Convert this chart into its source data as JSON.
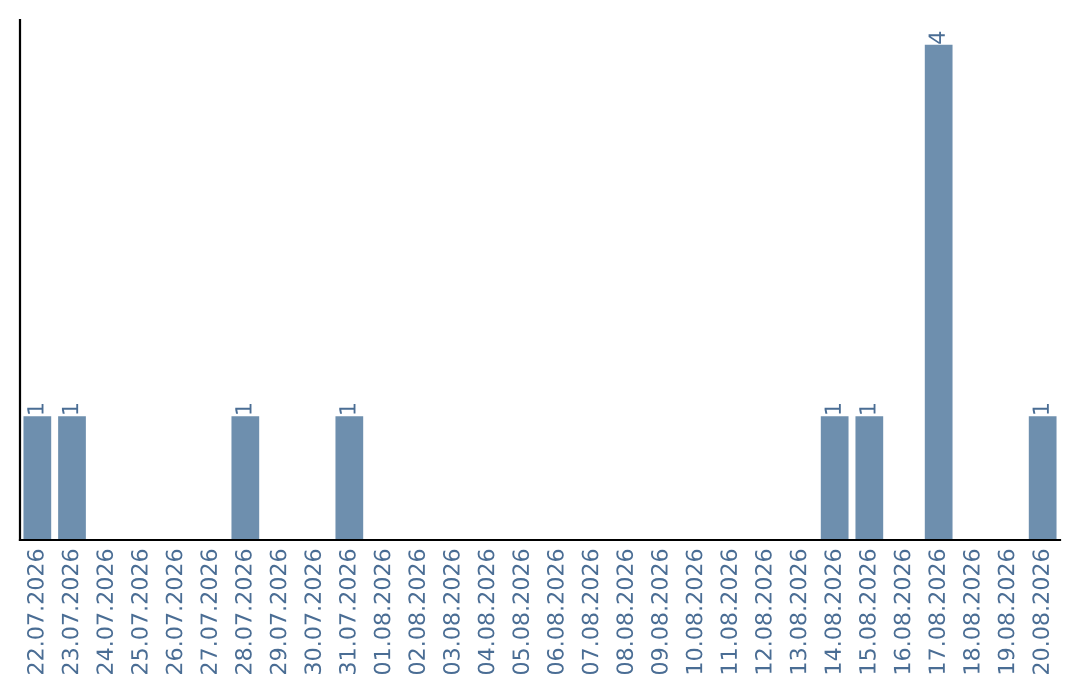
{
  "chart_data": {
    "type": "bar",
    "categories": [
      "22.07.2026",
      "23.07.2026",
      "24.07.2026",
      "25.07.2026",
      "26.07.2026",
      "27.07.2026",
      "28.07.2026",
      "29.07.2026",
      "30.07.2026",
      "31.07.2026",
      "01.08.2026",
      "02.08.2026",
      "03.08.2026",
      "04.08.2026",
      "05.08.2026",
      "06.08.2026",
      "07.08.2026",
      "08.08.2026",
      "09.08.2026",
      "10.08.2026",
      "11.08.2026",
      "12.08.2026",
      "13.08.2026",
      "14.08.2026",
      "15.08.2026",
      "16.08.2026",
      "17.08.2026",
      "18.08.2026",
      "19.08.2026",
      "20.08.2026"
    ],
    "values": [
      1,
      1,
      0,
      0,
      0,
      0,
      1,
      0,
      0,
      1,
      0,
      0,
      0,
      0,
      0,
      0,
      0,
      0,
      0,
      0,
      0,
      0,
      0,
      1,
      1,
      0,
      4,
      0,
      0,
      1
    ],
    "value_labels": [
      "1",
      "1",
      null,
      null,
      null,
      null,
      "1",
      null,
      null,
      "1",
      null,
      null,
      null,
      null,
      null,
      null,
      null,
      null,
      null,
      null,
      null,
      null,
      null,
      "1",
      "1",
      null,
      "4",
      null,
      null,
      "1"
    ],
    "color": "#6e8fae",
    "ylim": [
      0,
      4.2
    ],
    "tick_labels": "x",
    "grid": false,
    "legend": false
  }
}
